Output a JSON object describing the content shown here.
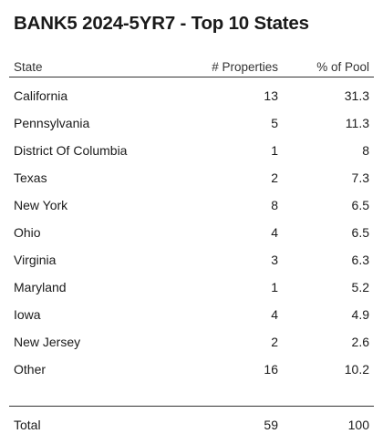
{
  "chart_data": {
    "type": "table",
    "title": "BANK5 2024-5YR7 - Top 10 States",
    "columns": [
      "State",
      "# Properties",
      "% of Pool"
    ],
    "rows": [
      {
        "state": "California",
        "properties": "13",
        "pool": "31.3"
      },
      {
        "state": "Pennsylvania",
        "properties": "5",
        "pool": "11.3"
      },
      {
        "state": "District Of Columbia",
        "properties": "1",
        "pool": "8"
      },
      {
        "state": "Texas",
        "properties": "2",
        "pool": "7.3"
      },
      {
        "state": "New York",
        "properties": "8",
        "pool": "6.5"
      },
      {
        "state": "Ohio",
        "properties": "4",
        "pool": "6.5"
      },
      {
        "state": "Virginia",
        "properties": "3",
        "pool": "6.3"
      },
      {
        "state": "Maryland",
        "properties": "1",
        "pool": "5.2"
      },
      {
        "state": "Iowa",
        "properties": "4",
        "pool": "4.9"
      },
      {
        "state": "New Jersey",
        "properties": "2",
        "pool": "2.6"
      },
      {
        "state": "Other",
        "properties": "16",
        "pool": "10.2"
      }
    ],
    "total": {
      "label": "Total",
      "properties": "59",
      "pool": "100"
    }
  }
}
